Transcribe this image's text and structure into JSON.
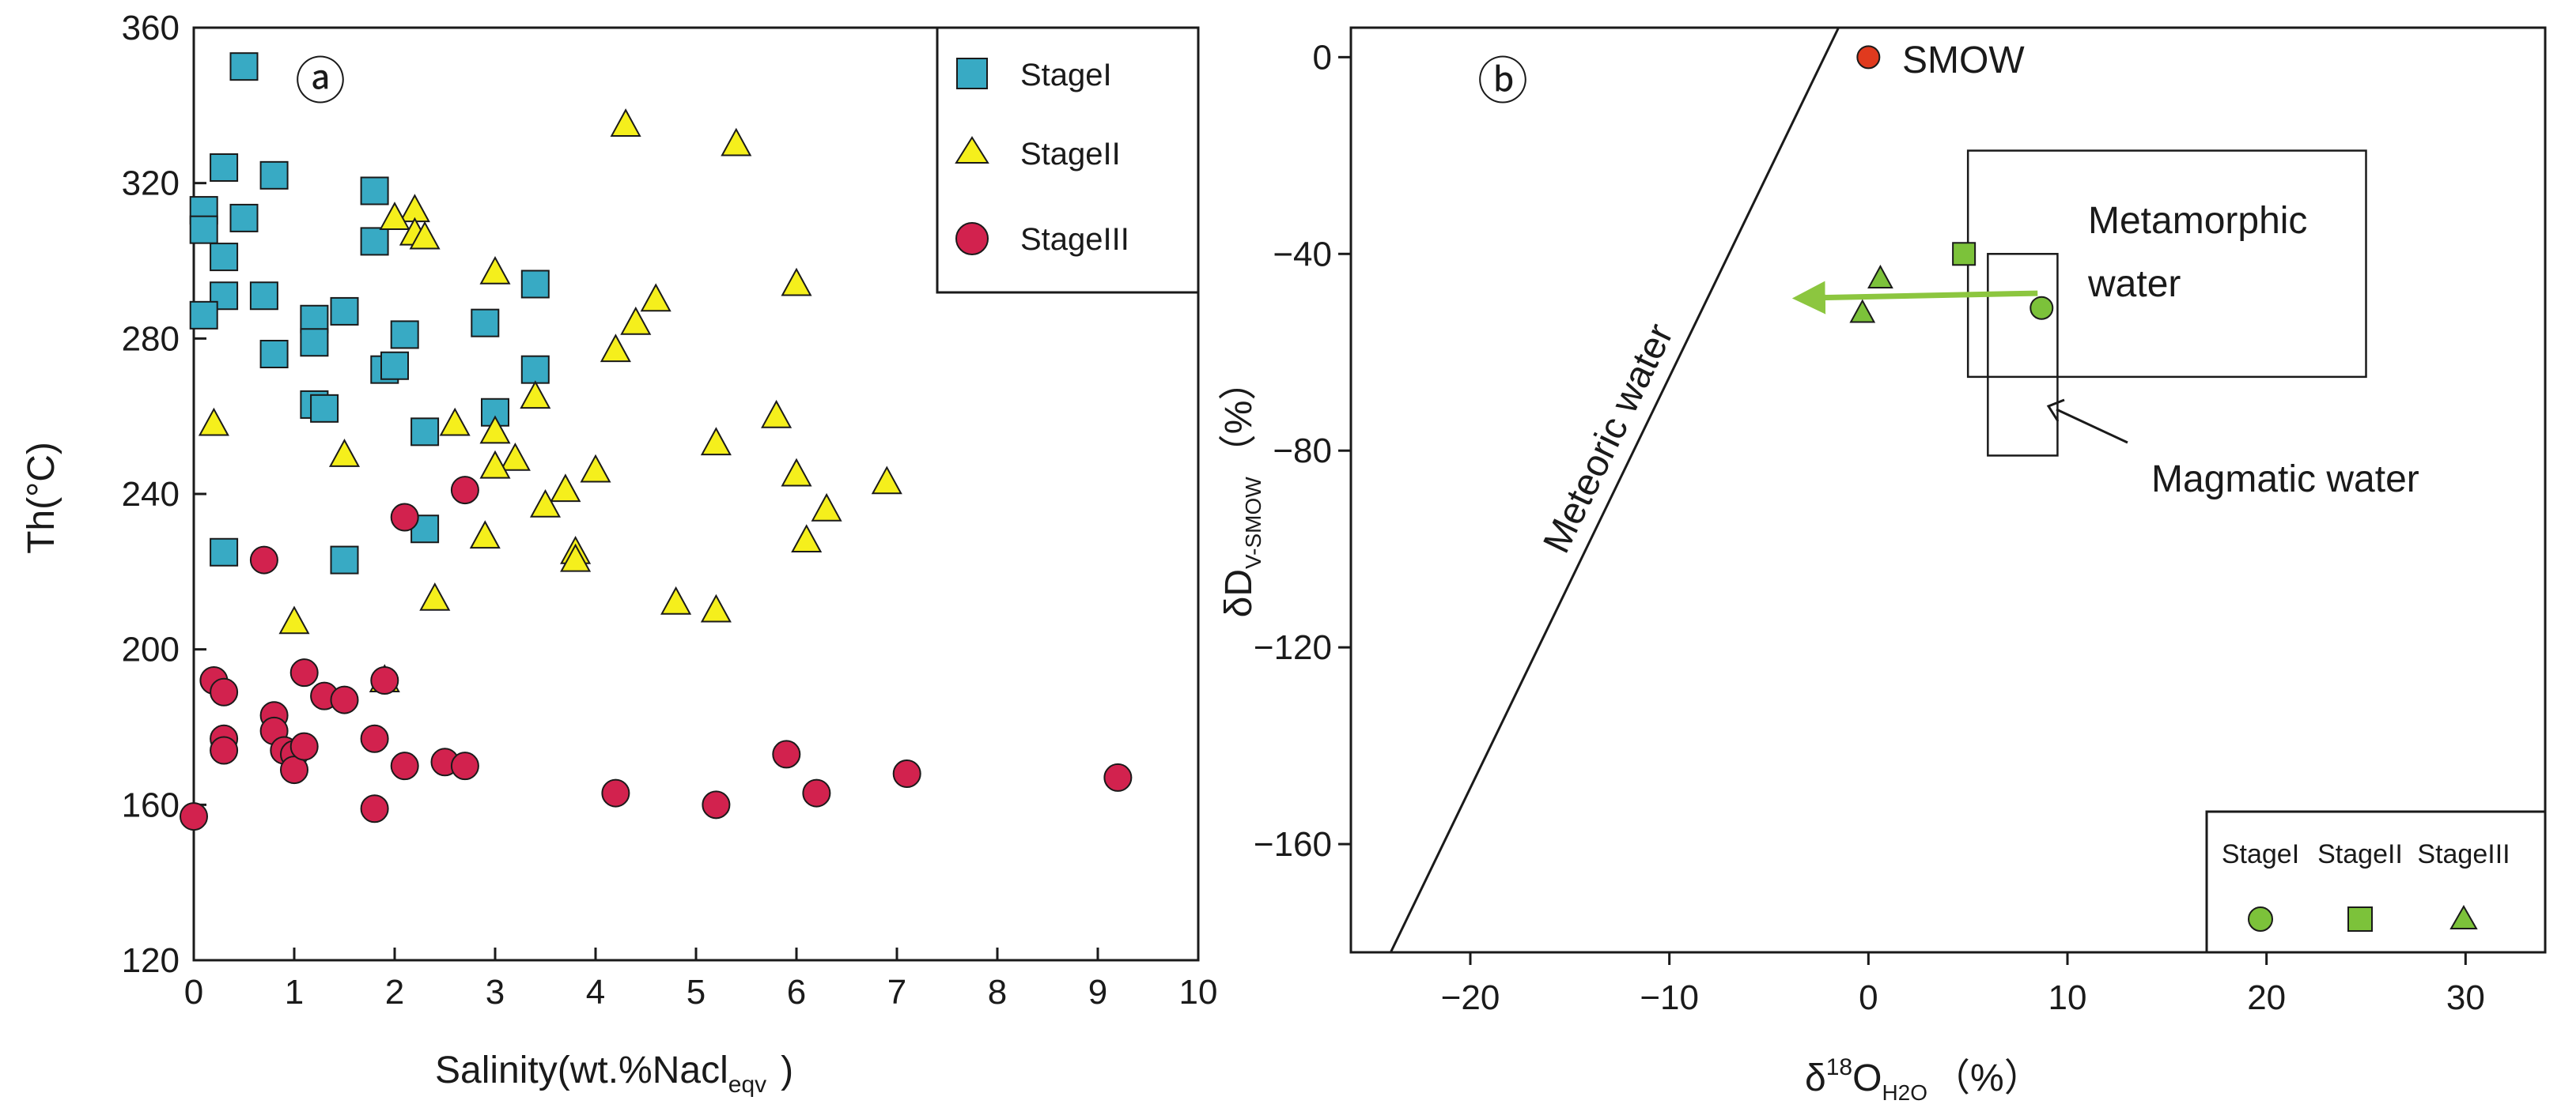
{
  "chart_data": [
    {
      "panel_label": "ⓐ",
      "type": "scatter",
      "xlabel": "Salinity(wt.%Nacl",
      "xlabel_sub": "eqv",
      "xlabel_close": ")",
      "ylabel": "Th(°C)",
      "xlim": [
        0,
        10
      ],
      "ylim": [
        120,
        360
      ],
      "xticks": [
        0,
        1,
        2,
        3,
        4,
        5,
        6,
        7,
        8,
        9,
        10
      ],
      "yticks": [
        120,
        160,
        200,
        240,
        280,
        320,
        360
      ],
      "legend_position": "top-right",
      "series": [
        {
          "name": "StageI",
          "marker": "square",
          "color": "#38aac4",
          "points": [
            [
              0.5,
              350
            ],
            [
              0.3,
              324
            ],
            [
              0.8,
              322
            ],
            [
              0.1,
              313
            ],
            [
              0.5,
              311
            ],
            [
              0.1,
              308
            ],
            [
              0.3,
              301
            ],
            [
              1.8,
              318
            ],
            [
              1.8,
              305
            ],
            [
              0.3,
              291
            ],
            [
              0.7,
              291
            ],
            [
              0.1,
              286
            ],
            [
              1.2,
              285
            ],
            [
              1.5,
              287
            ],
            [
              1.2,
              279
            ],
            [
              0.8,
              276
            ],
            [
              2.1,
              281
            ],
            [
              1.9,
              272
            ],
            [
              2.0,
              273
            ],
            [
              1.2,
              263
            ],
            [
              1.3,
              262
            ],
            [
              2.3,
              256
            ],
            [
              2.9,
              284
            ],
            [
              3.4,
              294
            ],
            [
              3.4,
              272
            ],
            [
              3.0,
              261
            ],
            [
              0.3,
              225
            ],
            [
              1.5,
              223
            ],
            [
              2.3,
              231
            ]
          ]
        },
        {
          "name": "StageII",
          "marker": "triangle",
          "color": "#f5ef1c",
          "points": [
            [
              4.3,
              335
            ],
            [
              5.4,
              330
            ],
            [
              2.2,
              313
            ],
            [
              2.0,
              311
            ],
            [
              2.2,
              307
            ],
            [
              2.3,
              306
            ],
            [
              3.0,
              297
            ],
            [
              6.0,
              294
            ],
            [
              4.6,
              290
            ],
            [
              4.4,
              284
            ],
            [
              4.2,
              277
            ],
            [
              3.4,
              265
            ],
            [
              5.8,
              260
            ],
            [
              0.2,
              258
            ],
            [
              2.6,
              258
            ],
            [
              3.0,
              256
            ],
            [
              5.2,
              253
            ],
            [
              1.5,
              250
            ],
            [
              3.2,
              249
            ],
            [
              3.0,
              247
            ],
            [
              4.0,
              246
            ],
            [
              6.0,
              245
            ],
            [
              6.9,
              243
            ],
            [
              3.7,
              241
            ],
            [
              3.5,
              237
            ],
            [
              6.3,
              236
            ],
            [
              2.9,
              229
            ],
            [
              6.1,
              228
            ],
            [
              3.8,
              225
            ],
            [
              3.8,
              223
            ],
            [
              2.4,
              213
            ],
            [
              4.8,
              212
            ],
            [
              5.2,
              210
            ],
            [
              1.0,
              207
            ],
            [
              1.9,
              192
            ]
          ]
        },
        {
          "name": "StageIII",
          "marker": "circle",
          "color": "#d2224e",
          "points": [
            [
              2.7,
              241
            ],
            [
              2.1,
              234
            ],
            [
              0.7,
              223
            ],
            [
              0.2,
              192
            ],
            [
              0.3,
              189
            ],
            [
              1.1,
              194
            ],
            [
              1.3,
              188
            ],
            [
              1.5,
              187
            ],
            [
              1.9,
              192
            ],
            [
              0.8,
              183
            ],
            [
              0.8,
              179
            ],
            [
              0.3,
              177
            ],
            [
              0.3,
              174
            ],
            [
              0.9,
              174
            ],
            [
              1.0,
              173
            ],
            [
              1.0,
              169
            ],
            [
              1.1,
              175
            ],
            [
              1.8,
              177
            ],
            [
              2.1,
              170
            ],
            [
              2.5,
              171
            ],
            [
              2.7,
              170
            ],
            [
              5.9,
              173
            ],
            [
              7.1,
              168
            ],
            [
              9.2,
              167
            ],
            [
              4.2,
              163
            ],
            [
              6.2,
              163
            ],
            [
              5.2,
              160
            ],
            [
              1.8,
              159
            ],
            [
              0.0,
              157
            ]
          ]
        }
      ]
    },
    {
      "panel_label": "ⓑ",
      "type": "scatter",
      "xlabel_delta": "δ",
      "xlabel_sup": "18",
      "xlabel_main": "O",
      "xlabel_sub": "H2O",
      "xlabel_unit": "（%）",
      "ylabel_main": "δD",
      "ylabel_sub": "V-SMOW",
      "ylabel_unit": "（%）",
      "xlim": [
        -26,
        34
      ],
      "ylim": [
        -182,
        6
      ],
      "xticks": [
        -20,
        -10,
        0,
        10,
        20,
        30
      ],
      "yticks": [
        0,
        -40,
        -80,
        -120,
        -160
      ],
      "legend_position": "bottom-right",
      "legend_labels": [
        "StageI",
        "StageII",
        "StageIII"
      ],
      "legend_marker_color": "#7cc23a",
      "meteoric_line": {
        "label": "Meteoric water",
        "x0": -24.0,
        "y0": -182,
        "x1": -1.5,
        "y1": 6
      },
      "smow": {
        "label": "SMOW",
        "x": 0,
        "y": 0,
        "color": "#e03a1e"
      },
      "metamorphic_box": {
        "label_line1": "Metamorphic",
        "label_line2": "water",
        "x": [
          5,
          25
        ],
        "y": [
          -65,
          -19
        ]
      },
      "magmatic_box": {
        "label": "Magmatic water",
        "x": [
          6,
          9.5
        ],
        "y": [
          -81,
          -40
        ]
      },
      "trend_arrow": {
        "color": "#8cc63f",
        "from": [
          8.5,
          -48
        ],
        "to": [
          -3.5,
          -49
        ]
      },
      "series": [
        {
          "name": "StageI",
          "marker": "circle",
          "color": "#7cc23a",
          "points": [
            [
              8.7,
              -51
            ]
          ]
        },
        {
          "name": "StageII",
          "marker": "square",
          "color": "#7cc23a",
          "points": [
            [
              4.8,
              -40
            ]
          ]
        },
        {
          "name": "StageIII",
          "marker": "triangle",
          "color": "#7cc23a",
          "points": [
            [
              0.6,
              -45
            ],
            [
              -0.3,
              -52
            ]
          ]
        }
      ]
    }
  ]
}
